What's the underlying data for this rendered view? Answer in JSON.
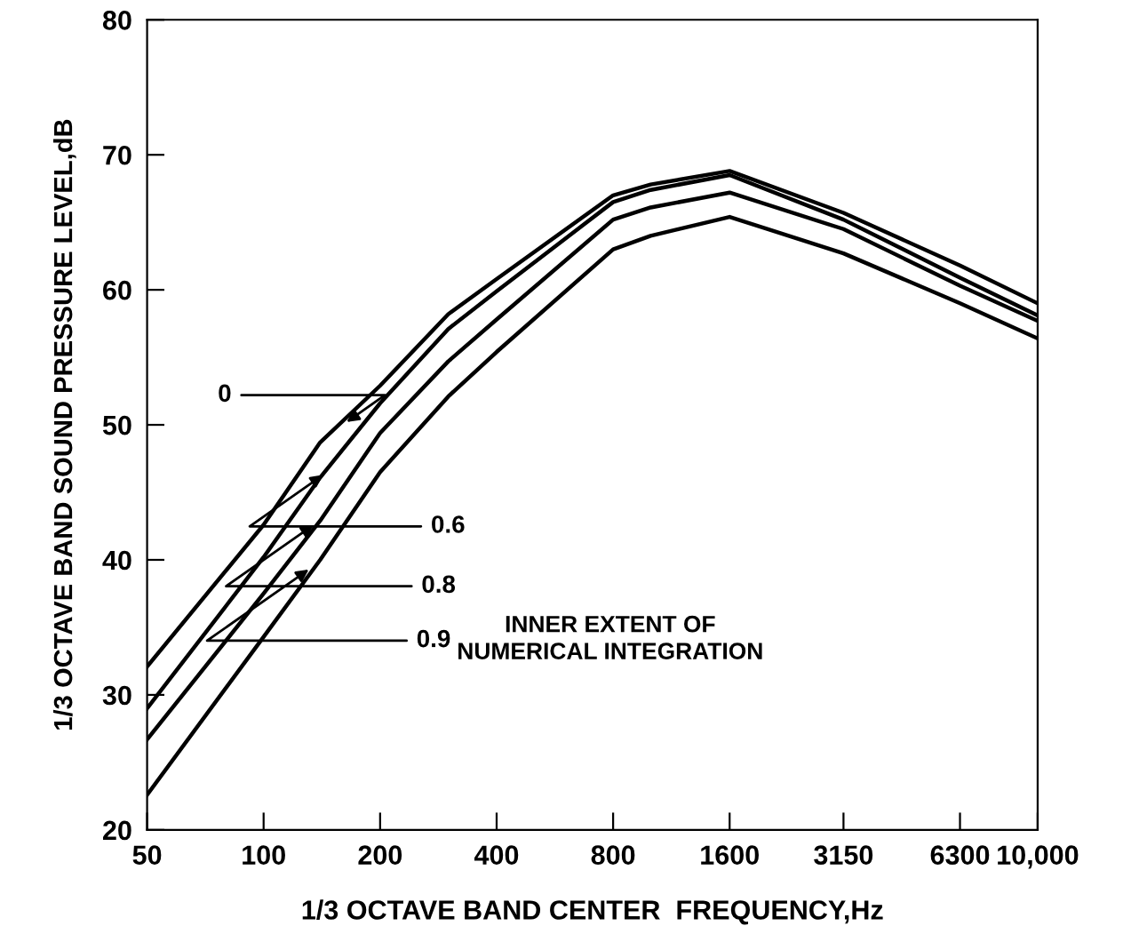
{
  "chart_data": {
    "type": "line",
    "xlabel": "1/3 OCTAVE BAND CENTER  FREQUENCY,Hz",
    "ylabel": "1/3 OCTAVE BAND SOUND PRESSURE LEVEL,dB",
    "x": [
      50,
      100,
      140,
      200,
      300,
      400,
      800,
      1000,
      1600,
      3150,
      6300,
      10000
    ],
    "series": [
      {
        "color": "#000000",
        "values": [
          32.1,
          42.6,
          48.7,
          52.9,
          58.2,
          60.8,
          67.0,
          67.8,
          68.8,
          65.7,
          61.8,
          59.0
        ]
      },
      {
        "color": "#000000",
        "values": [
          29.0,
          40.2,
          46.1,
          51.6,
          57.1,
          59.9,
          66.5,
          67.4,
          68.5,
          65.2,
          60.9,
          58.1
        ]
      },
      {
        "color": "#000000",
        "values": [
          26.7,
          37.5,
          42.9,
          49.4,
          54.7,
          57.8,
          65.2,
          66.1,
          67.2,
          64.5,
          60.3,
          57.7
        ]
      },
      {
        "color": "#000000",
        "values": [
          22.6,
          34.3,
          40.0,
          46.5,
          52.1,
          55.4,
          63.0,
          64.0,
          65.4,
          62.7,
          59.0,
          56.4
        ]
      }
    ],
    "annotations": [
      {
        "text": "0",
        "x": 160,
        "y": 50
      },
      {
        "text": "0.6",
        "x": 146,
        "y": 46.5
      },
      {
        "text": "0.8",
        "x": 138,
        "y": 42.8
      },
      {
        "text": "0.9",
        "x": 134,
        "y": 39.5
      },
      "INNER EXTENT OF\nNUMERICAL INTEGRATION"
    ],
    "log": "x",
    "xlim": [
      50,
      10000
    ],
    "xticks": [
      50,
      100,
      200,
      400,
      800,
      1600,
      3150,
      6300,
      {
        "value": 10000,
        "label": "10,000"
      }
    ],
    "ylim": [
      20,
      80
    ],
    "yticks": [
      20,
      30,
      40,
      50,
      60,
      70,
      80
    ],
    "grid": false,
    "legend": false,
    "marker": "none",
    "line_style": "solid"
  }
}
